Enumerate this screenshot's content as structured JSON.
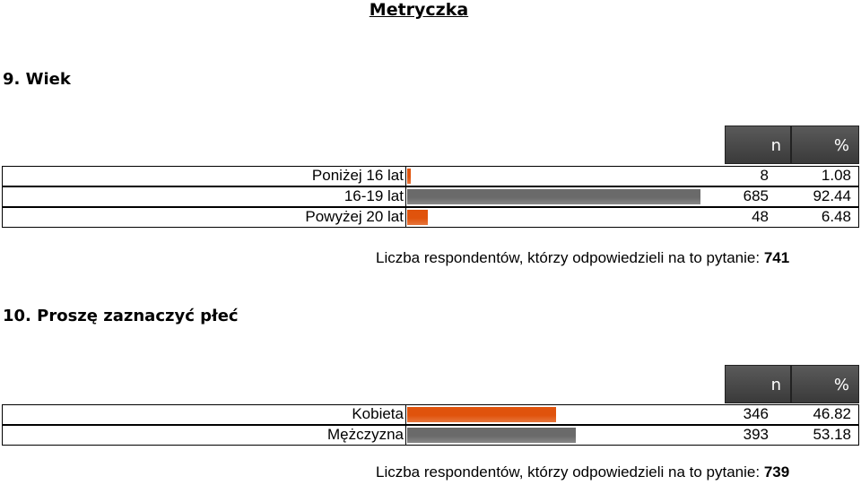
{
  "title": "Metryczka",
  "questions": [
    {
      "title": "9. Wiek",
      "header_n": "n",
      "header_pct": "%",
      "bar_colors": [
        "#e0530c",
        "#6a6a6a"
      ],
      "rows": [
        {
          "label": "Poniżej 16 lat",
          "n": 8,
          "pct": 1.08
        },
        {
          "label": "16-19 lat",
          "n": 685,
          "pct": 92.44
        },
        {
          "label": "Powyżej 20 lat",
          "n": 48,
          "pct": 6.48
        }
      ],
      "footer_label": "Liczba respondentów, którzy odpowiedzieli na to pytanie:",
      "footer_count": 741
    },
    {
      "title": "10. Proszę zaznaczyć płeć",
      "header_n": "n",
      "header_pct": "%",
      "bar_colors": [
        "#e0530c",
        "#6a6a6a"
      ],
      "rows": [
        {
          "label": "Kobieta",
          "n": 346,
          "pct": 46.82
        },
        {
          "label": "Mężczyzna",
          "n": 393,
          "pct": 53.18
        }
      ],
      "footer_label": "Liczba respondentów, którzy odpowiedzieli na to pytanie:",
      "footer_count": 739
    }
  ]
}
